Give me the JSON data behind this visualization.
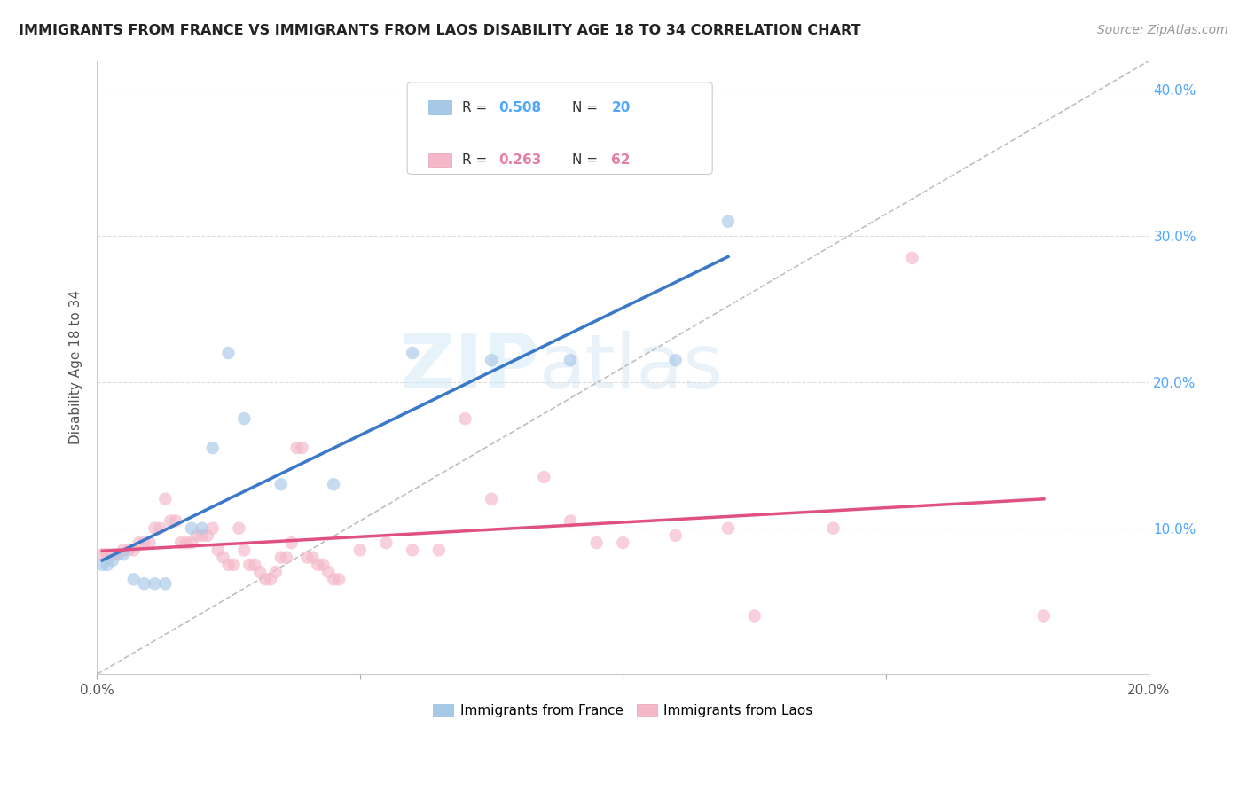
{
  "title": "IMMIGRANTS FROM FRANCE VS IMMIGRANTS FROM LAOS DISABILITY AGE 18 TO 34 CORRELATION CHART",
  "source": "Source: ZipAtlas.com",
  "ylabel": "Disability Age 18 to 34",
  "xlim": [
    0,
    0.2
  ],
  "ylim": [
    0,
    0.42
  ],
  "france_color": "#a8c8e8",
  "france_line_color": "#3a78c9",
  "laos_color": "#f4b8c8",
  "laos_line_color": "#e05080",
  "france_R": "0.508",
  "france_N": "20",
  "laos_R": "0.263",
  "laos_N": "62",
  "blue_text_color": "#4da6ff",
  "france_dots": [
    [
      0.001,
      0.075
    ],
    [
      0.002,
      0.075
    ],
    [
      0.003,
      0.078
    ],
    [
      0.005,
      0.082
    ],
    [
      0.007,
      0.065
    ],
    [
      0.009,
      0.062
    ],
    [
      0.011,
      0.062
    ],
    [
      0.013,
      0.062
    ],
    [
      0.018,
      0.1
    ],
    [
      0.02,
      0.1
    ],
    [
      0.022,
      0.155
    ],
    [
      0.025,
      0.22
    ],
    [
      0.028,
      0.175
    ],
    [
      0.035,
      0.13
    ],
    [
      0.045,
      0.13
    ],
    [
      0.06,
      0.22
    ],
    [
      0.075,
      0.215
    ],
    [
      0.09,
      0.215
    ],
    [
      0.11,
      0.215
    ],
    [
      0.12,
      0.31
    ]
  ],
  "laos_dots": [
    [
      0.001,
      0.082
    ],
    [
      0.002,
      0.082
    ],
    [
      0.003,
      0.082
    ],
    [
      0.004,
      0.082
    ],
    [
      0.005,
      0.085
    ],
    [
      0.006,
      0.085
    ],
    [
      0.007,
      0.085
    ],
    [
      0.008,
      0.09
    ],
    [
      0.009,
      0.09
    ],
    [
      0.01,
      0.09
    ],
    [
      0.011,
      0.1
    ],
    [
      0.012,
      0.1
    ],
    [
      0.013,
      0.12
    ],
    [
      0.014,
      0.105
    ],
    [
      0.015,
      0.105
    ],
    [
      0.016,
      0.09
    ],
    [
      0.017,
      0.09
    ],
    [
      0.018,
      0.09
    ],
    [
      0.019,
      0.095
    ],
    [
      0.02,
      0.095
    ],
    [
      0.021,
      0.095
    ],
    [
      0.022,
      0.1
    ],
    [
      0.023,
      0.085
    ],
    [
      0.024,
      0.08
    ],
    [
      0.025,
      0.075
    ],
    [
      0.026,
      0.075
    ],
    [
      0.027,
      0.1
    ],
    [
      0.028,
      0.085
    ],
    [
      0.029,
      0.075
    ],
    [
      0.03,
      0.075
    ],
    [
      0.031,
      0.07
    ],
    [
      0.032,
      0.065
    ],
    [
      0.033,
      0.065
    ],
    [
      0.034,
      0.07
    ],
    [
      0.035,
      0.08
    ],
    [
      0.036,
      0.08
    ],
    [
      0.037,
      0.09
    ],
    [
      0.038,
      0.155
    ],
    [
      0.039,
      0.155
    ],
    [
      0.04,
      0.08
    ],
    [
      0.041,
      0.08
    ],
    [
      0.042,
      0.075
    ],
    [
      0.043,
      0.075
    ],
    [
      0.044,
      0.07
    ],
    [
      0.045,
      0.065
    ],
    [
      0.046,
      0.065
    ],
    [
      0.05,
      0.085
    ],
    [
      0.055,
      0.09
    ],
    [
      0.06,
      0.085
    ],
    [
      0.065,
      0.085
    ],
    [
      0.07,
      0.175
    ],
    [
      0.075,
      0.12
    ],
    [
      0.085,
      0.135
    ],
    [
      0.09,
      0.105
    ],
    [
      0.095,
      0.09
    ],
    [
      0.1,
      0.09
    ],
    [
      0.11,
      0.095
    ],
    [
      0.12,
      0.1
    ],
    [
      0.14,
      0.1
    ],
    [
      0.155,
      0.285
    ],
    [
      0.125,
      0.04
    ],
    [
      0.18,
      0.04
    ]
  ],
  "watermark_zip": "ZIP",
  "watermark_atlas": "atlas",
  "background_color": "#ffffff",
  "grid_color": "#dddddd"
}
